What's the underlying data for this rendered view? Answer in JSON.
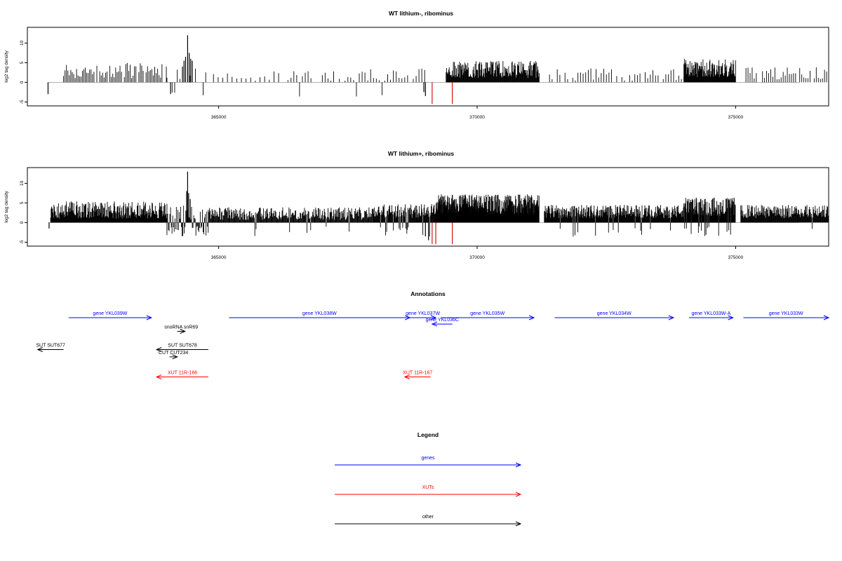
{
  "colors": {
    "gene": "#0000ff",
    "xut": "#ff0000",
    "other": "#000000",
    "peak": "#cc0000",
    "axis": "#000000",
    "baseline": "#999999"
  },
  "chart_data": [
    {
      "type": "bar",
      "title": "WT lithium-, ribominus",
      "ylabel": "log2 tag density",
      "xlim": [
        361300,
        376800
      ],
      "ylim": [
        -6,
        14
      ],
      "xticks": [
        365000,
        370000,
        375000
      ],
      "yticks": [
        -5,
        0,
        5,
        10
      ],
      "regions": [
        {
          "x0": 362000,
          "x1": 364000,
          "mean": 3.0,
          "amp": 2.0,
          "step": 28,
          "neg": 0.0
        },
        {
          "x0": 364000,
          "x1": 364750,
          "mean": 2.0,
          "amp": 1.6,
          "step": 50,
          "neg": 0.12
        },
        {
          "x0": 364900,
          "x1": 366400,
          "mean": 1.5,
          "amp": 1.4,
          "step": 90,
          "neg": 0.0
        },
        {
          "x0": 366400,
          "x1": 369000,
          "mean": 2.0,
          "amp": 1.6,
          "step": 55,
          "neg": 0.04
        },
        {
          "x0": 369400,
          "x1": 371200,
          "mean": 3.3,
          "amp": 2.2,
          "step": 10,
          "neg": 0.0
        },
        {
          "x0": 371400,
          "x1": 374000,
          "mean": 2.0,
          "amp": 1.6,
          "step": 50,
          "neg": 0.0
        },
        {
          "x0": 374000,
          "x1": 375000,
          "mean": 3.6,
          "amp": 2.4,
          "step": 9,
          "neg": 0.0
        },
        {
          "x0": 375200,
          "x1": 376800,
          "mean": 2.3,
          "amp": 1.6,
          "step": 40,
          "neg": 0.0
        }
      ],
      "spikes": [
        {
          "x": 361700,
          "y": -3.0
        },
        {
          "x": 364070,
          "y": -3.0
        },
        {
          "x": 364300,
          "y": 4.0
        },
        {
          "x": 364330,
          "y": 5.5
        },
        {
          "x": 364360,
          "y": 6.5
        },
        {
          "x": 364400,
          "y": 12.0
        },
        {
          "x": 364430,
          "y": 7.5
        },
        {
          "x": 364460,
          "y": 6.0
        },
        {
          "x": 364490,
          "y": 5.5
        },
        {
          "x": 368970,
          "y": -2.5
        },
        {
          "x": 369000,
          "y": -3.5
        }
      ],
      "red_spikes": [
        {
          "x": 369130,
          "y": -5.5
        },
        {
          "x": 369520,
          "y": -5.5
        }
      ]
    },
    {
      "type": "bar",
      "title": "WT lithium+, ribominus",
      "ylabel": "log2 tag density",
      "xlim": [
        361300,
        376800
      ],
      "ylim": [
        -6,
        14
      ],
      "xticks": [
        365000,
        370000,
        375000
      ],
      "yticks": [
        -5,
        0,
        5,
        10
      ],
      "regions": [
        {
          "x0": 361750,
          "x1": 364000,
          "mean": 3.2,
          "amp": 2.2,
          "step": 9,
          "neg": 0.0
        },
        {
          "x0": 364000,
          "x1": 364800,
          "mean": 2.6,
          "amp": 1.8,
          "step": 14,
          "neg": 0.55
        },
        {
          "x0": 364800,
          "x1": 368000,
          "mean": 2.3,
          "amp": 1.6,
          "step": 12,
          "neg": 0.04
        },
        {
          "x0": 368000,
          "x1": 369200,
          "mean": 3.0,
          "amp": 1.8,
          "step": 10,
          "neg": 0.1
        },
        {
          "x0": 369200,
          "x1": 371200,
          "mean": 4.6,
          "amp": 2.6,
          "step": 6,
          "neg": 0.0
        },
        {
          "x0": 371300,
          "x1": 374000,
          "mean": 2.8,
          "amp": 1.7,
          "step": 9,
          "neg": 0.03
        },
        {
          "x0": 374000,
          "x1": 375000,
          "mean": 4.0,
          "amp": 2.4,
          "step": 7,
          "neg": 0.08
        },
        {
          "x0": 375100,
          "x1": 376800,
          "mean": 2.8,
          "amp": 1.7,
          "step": 10,
          "neg": 0.02
        }
      ],
      "spikes": [
        {
          "x": 361720,
          "y": -1.5
        },
        {
          "x": 364380,
          "y": 8.0
        },
        {
          "x": 364400,
          "y": 13.0
        },
        {
          "x": 364420,
          "y": 7.5
        },
        {
          "x": 364450,
          "y": 6.0
        },
        {
          "x": 369000,
          "y": -3.5
        },
        {
          "x": 369060,
          "y": -4.5
        }
      ],
      "red_spikes": [
        {
          "x": 369130,
          "y": -5.5
        },
        {
          "x": 369200,
          "y": -5.5
        },
        {
          "x": 369520,
          "y": -5.5
        }
      ]
    }
  ],
  "annotations": {
    "title": "Annotations",
    "xlim": [
      361300,
      376800
    ],
    "features": [
      {
        "label": "gene YKL039W",
        "color": "gene",
        "start": 362100,
        "end": 363700,
        "dir": "+",
        "row": 0
      },
      {
        "label": "gene YKL038W",
        "color": "gene",
        "start": 365200,
        "end": 368700,
        "dir": "+",
        "row": 0
      },
      {
        "label": "gene YKL037W",
        "color": "gene",
        "start": 368700,
        "end": 369200,
        "dir": "+",
        "row": 0
      },
      {
        "label": "gene YKL035W",
        "color": "gene",
        "start": 369300,
        "end": 371100,
        "dir": "+",
        "row": 0
      },
      {
        "label": "gene YKL034W",
        "color": "gene",
        "start": 371500,
        "end": 373800,
        "dir": "+",
        "row": 0
      },
      {
        "label": "gene YKL033W-A",
        "color": "gene",
        "start": 374100,
        "end": 374950,
        "dir": "+",
        "row": 0
      },
      {
        "label": "gene YKL033W",
        "color": "gene",
        "start": 375150,
        "end": 376800,
        "dir": "+",
        "row": 0
      },
      {
        "label": "gene YKL036C",
        "color": "gene",
        "start": 369130,
        "end": 369520,
        "dir": "-",
        "row": 0.7
      },
      {
        "label": "snoRNA snR69",
        "color": "other",
        "start": 364200,
        "end": 364350,
        "dir": "+",
        "row": 1.5
      },
      {
        "label": "SUT SUT677",
        "color": "other",
        "start": 361500,
        "end": 362000,
        "dir": "-",
        "row": 3.5
      },
      {
        "label": "SUT SUT678",
        "color": "other",
        "start": 363800,
        "end": 364800,
        "dir": "-",
        "row": 3.5
      },
      {
        "label": "CUT CUT234",
        "color": "other",
        "start": 364050,
        "end": 364200,
        "dir": "+",
        "row": 4.3
      },
      {
        "label": "XUT 11R-166",
        "color": "xut",
        "start": 363800,
        "end": 364800,
        "dir": "-",
        "row": 6.5
      },
      {
        "label": "XUT 11R-167",
        "color": "xut",
        "start": 368600,
        "end": 369100,
        "dir": "-",
        "row": 6.5
      }
    ]
  },
  "legend": {
    "title": "Legend",
    "items": [
      {
        "label": "genes",
        "color": "gene"
      },
      {
        "label": "XUTs",
        "color": "xut"
      },
      {
        "label": "other",
        "color": "other"
      }
    ]
  }
}
